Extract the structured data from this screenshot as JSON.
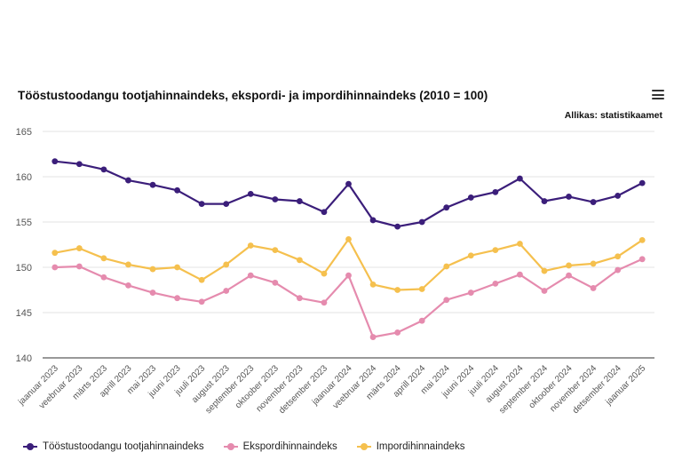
{
  "header": {
    "title": "Tööstustoodangu tootjahinnaindeks, ekspordi- ja impordihinnaindeks (2010 = 100)",
    "source": "Allikas: statistikaamet",
    "menu_icon": "hamburger-menu-icon"
  },
  "chart_data": {
    "type": "line",
    "title": "Tööstustoodangu tootjahinnaindeks, ekspordi- ja impordihinnaindeks (2010 = 100)",
    "xlabel": "",
    "ylabel": "",
    "ylim": [
      140,
      165
    ],
    "yticks": [
      140,
      145,
      150,
      155,
      160,
      165
    ],
    "grid": true,
    "legend_position": "bottom-left",
    "categories": [
      "jaanuar 2023",
      "veebruar 2023",
      "märts 2023",
      "aprill 2023",
      "mai 2023",
      "juuni 2023",
      "juuli 2023",
      "august 2023",
      "september 2023",
      "oktoober 2023",
      "november 2023",
      "detsember 2023",
      "jaanuar 2024",
      "veebruar 2024",
      "märts 2024",
      "aprill 2024",
      "mai 2024",
      "juuni 2024",
      "juuli 2024",
      "august 2024",
      "september 2024",
      "oktoober 2024",
      "november 2024",
      "detsember 2024",
      "jaanuar 2025"
    ],
    "series": [
      {
        "name": "Tööstustoodangu tootjahinnaindeks",
        "color": "#3b1e7a",
        "values": [
          161.7,
          161.4,
          160.8,
          159.6,
          159.1,
          158.5,
          157.0,
          157.0,
          158.1,
          157.5,
          157.3,
          156.1,
          159.2,
          155.2,
          154.5,
          155.0,
          156.6,
          157.7,
          158.3,
          159.8,
          157.3,
          157.8,
          157.2,
          157.9,
          159.3
        ]
      },
      {
        "name": "Ekspordihinnaindeks",
        "color": "#e58bae",
        "values": [
          150.0,
          150.1,
          148.9,
          148.0,
          147.2,
          146.6,
          146.2,
          147.4,
          149.1,
          148.3,
          146.6,
          146.1,
          149.1,
          142.3,
          142.8,
          144.1,
          146.4,
          147.2,
          148.2,
          149.2,
          147.4,
          149.1,
          147.7,
          149.7,
          150.9
        ]
      },
      {
        "name": "Impordihinnaindeks",
        "color": "#f5c04e",
        "values": [
          151.6,
          152.1,
          151.0,
          150.3,
          149.8,
          150.0,
          148.6,
          150.3,
          152.4,
          151.9,
          150.8,
          149.3,
          153.1,
          148.1,
          147.5,
          147.6,
          150.1,
          151.3,
          151.9,
          152.6,
          149.6,
          150.2,
          150.4,
          151.2,
          153.0
        ]
      }
    ]
  }
}
